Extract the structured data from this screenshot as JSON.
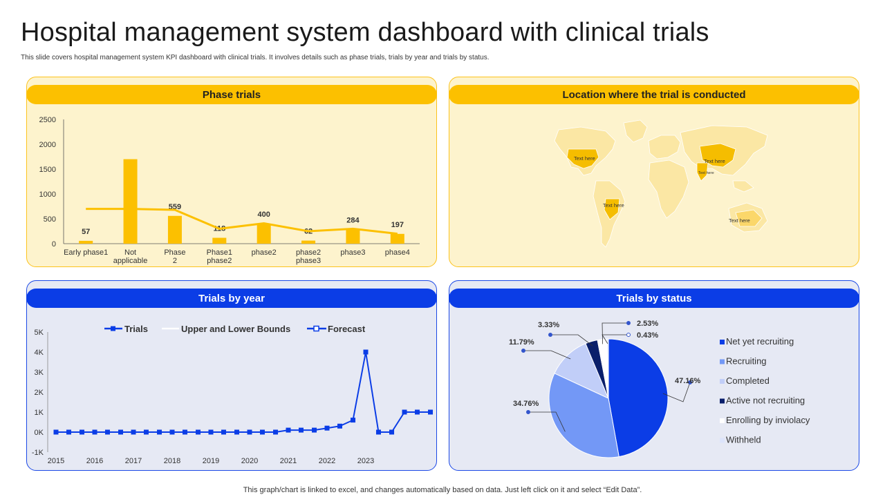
{
  "title": "Hospital management system dashboard with clinical trials",
  "subtitle": "This slide covers hospital management system KPI dashboard  with clinical trials. It involves details such as phase trials, trials by year and trials by status.",
  "footer": "This graph/chart is linked to excel,  and changes automatically based on data. Just left click on it and select “Edit Data”.",
  "colors": {
    "yellow": "#fcc000",
    "blue": "#0b3de6",
    "yellow_bg": "#fdf3cd",
    "blue_bg": "#e6e9f4"
  },
  "panels": {
    "phase": "Phase trials",
    "location": "Location where the trial is conducted",
    "year": "Trials by year",
    "status": "Trials by status"
  },
  "map_labels": [
    "Text here",
    "Text here",
    "Text here",
    "Text here",
    "Text here"
  ],
  "chart_data": [
    {
      "type": "bar",
      "title": "Phase trials",
      "categories": [
        "Early phase1",
        "Not applicable",
        "Phase 2",
        "Phase1 phase2",
        "phase2",
        "phase2 phase3",
        "phase3",
        "phase4"
      ],
      "values": [
        57,
        1700,
        559,
        118,
        400,
        62,
        284,
        197
      ],
      "data_labels": [
        "57",
        "",
        "559",
        "118",
        "400",
        "62",
        "284",
        "197"
      ],
      "line_values": [
        700,
        700,
        680,
        300,
        410,
        250,
        300,
        200
      ],
      "yticks": [
        "0",
        "500",
        "1000",
        "1500",
        "2000",
        "2500"
      ],
      "ylim": [
        0,
        2500
      ]
    },
    {
      "type": "line",
      "title": "Trials by year",
      "legend": [
        "Trials",
        "Upper and Lower Bounds",
        "Forecast"
      ],
      "xticks": [
        "2015",
        "2016",
        "2017",
        "2018",
        "2019",
        "2020",
        "2021",
        "2022",
        "2023"
      ],
      "yticks": [
        "-1K",
        "0K",
        "1K",
        "2K",
        "3K",
        "4K",
        "5K"
      ],
      "ylim": [
        -1000,
        5000
      ],
      "xlim": [
        2015,
        2024.5
      ],
      "series": [
        {
          "name": "Trials",
          "x": [
            2015,
            2015.33,
            2015.67,
            2016,
            2016.33,
            2016.67,
            2017,
            2017.33,
            2017.67,
            2018,
            2018.33,
            2018.67,
            2019,
            2019.33,
            2019.67,
            2020,
            2020.33,
            2020.67,
            2021,
            2021.33,
            2021.67,
            2022,
            2022.33,
            2022.67,
            2023,
            2023.33,
            2023.67
          ],
          "y": [
            0,
            0,
            0,
            0,
            0,
            0,
            0,
            0,
            0,
            0,
            0,
            0,
            0,
            0,
            0,
            0,
            0,
            0,
            100,
            100,
            100,
            200,
            300,
            600,
            4000,
            0,
            0
          ]
        },
        {
          "name": "Forecast",
          "x": [
            2023.67,
            2024,
            2024.33,
            2024.67
          ],
          "y": [
            0,
            1000,
            1000,
            1000
          ]
        }
      ]
    },
    {
      "type": "pie",
      "title": "Trials by status",
      "labels": [
        "Net yet recruiting",
        "Recruiting",
        "Completed",
        "Active not recruiting",
        "Enrolling by inviolacy",
        "Withheld"
      ],
      "values": [
        47.16,
        34.76,
        11.79,
        3.33,
        2.53,
        0.43
      ],
      "value_labels": [
        "47.16%",
        "34.76%",
        "11.79%",
        "3.33%",
        "2.53%",
        "0.43%"
      ],
      "colors": [
        "#0b3de6",
        "#7398f6",
        "#c1cef8",
        "#0a1f6b",
        "#ffffff",
        "#dce4fb"
      ]
    }
  ]
}
